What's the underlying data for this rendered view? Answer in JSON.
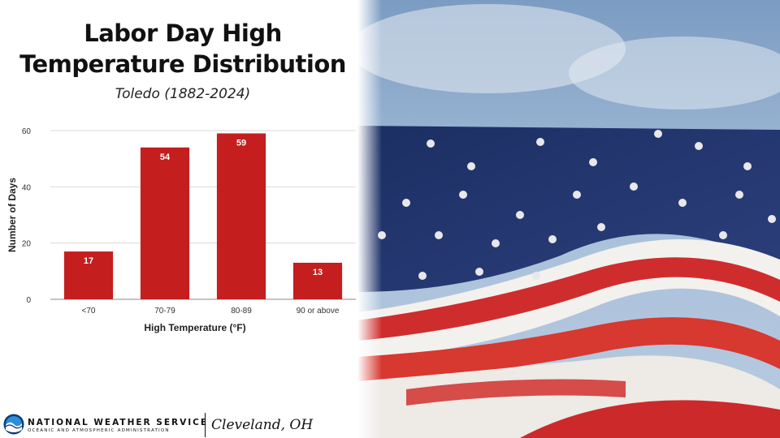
{
  "slide": {
    "title_line1": "Labor Day High",
    "title_line2": "Temperature Distribution",
    "subtitle": "Toledo (1882-2024)"
  },
  "footer": {
    "agency": "NATIONAL WEATHER SERVICE",
    "agency_sub": "OCEANIC AND ATMOSPHERIC ADMINISTRATION",
    "office": "Cleveland, OH"
  },
  "chart_data": {
    "type": "bar",
    "categories": [
      "<70",
      "70-79",
      "80-89",
      "90 or above"
    ],
    "values": [
      17,
      54,
      59,
      13
    ],
    "data_labels": [
      "17",
      "54",
      "59",
      "13"
    ],
    "xlabel": "High Temperature (°F)",
    "ylabel": "Number of Days",
    "ylim": [
      0,
      60
    ],
    "yticks": [
      0,
      20,
      40,
      60
    ],
    "grid": true,
    "legend": "none",
    "bar_color": "#c41e1e"
  },
  "colors": {
    "title": "#111111",
    "bar": "#c41e1e",
    "grid": "#d9d9d9"
  },
  "photo": {
    "icon": "american-flag-photo"
  }
}
